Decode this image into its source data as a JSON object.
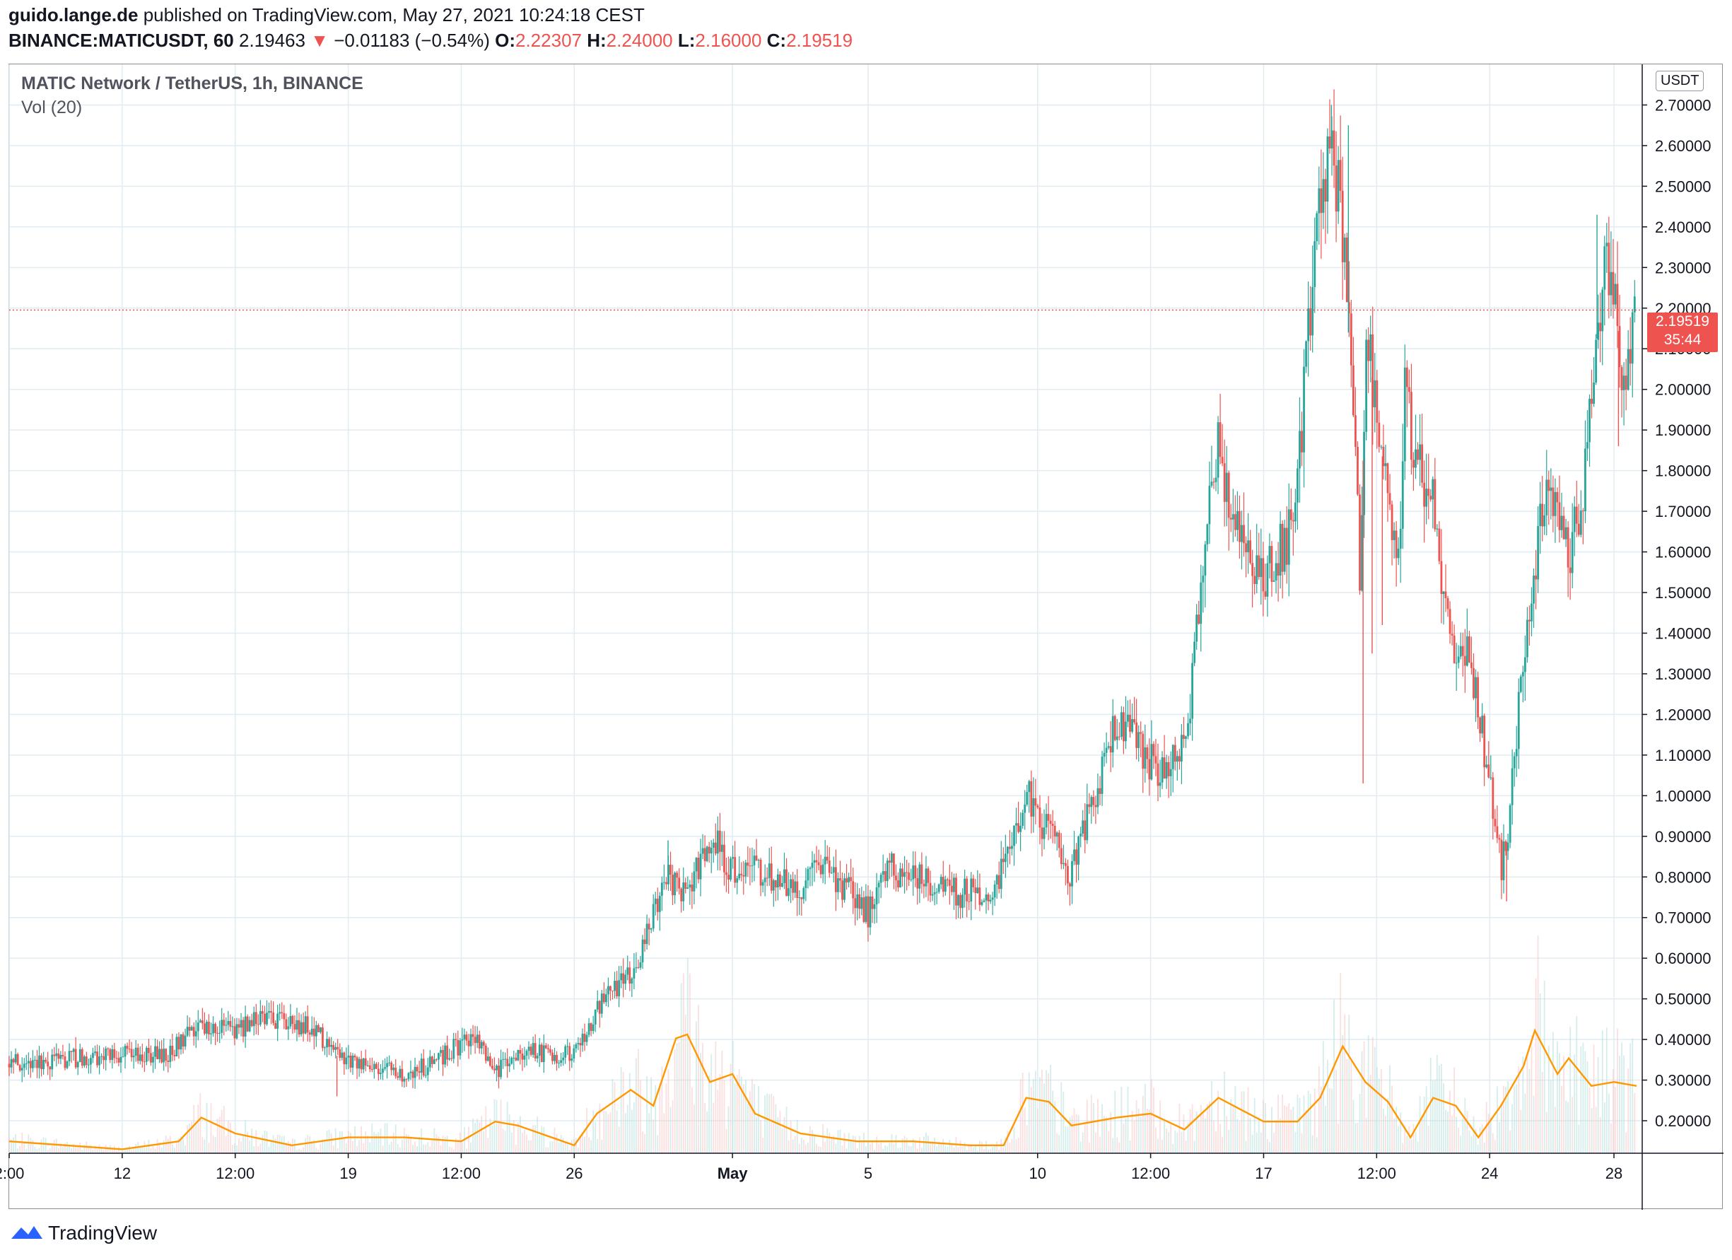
{
  "header": {
    "author": "guido.lange.de",
    "published": "published on TradingView.com, May 27, 2021 10:24:18 CEST",
    "symbol": "BINANCE:MATICUSDT, 60",
    "last": "2.19463",
    "arrow": "▼",
    "change": "−0.01183 (−0.54%)",
    "o_label": "O:",
    "o_value": "2.22307",
    "h_label": "H:",
    "h_value": "2.24000",
    "l_label": "L:",
    "l_value": "2.16000",
    "c_label": "C:",
    "c_value": "2.19519"
  },
  "legend": {
    "title": "MATIC Network / TetherUS, 1h, BINANCE",
    "volume": "Vol (20)"
  },
  "axis": {
    "unit": "USDT",
    "price_tag": "2.19519",
    "countdown": "35:44"
  },
  "footer": {
    "brand": "TradingView"
  },
  "colors": {
    "up": "#26a69a",
    "down": "#ef5350",
    "ma": "#ff9800",
    "grid": "#e0ecf2",
    "last_line": "#ef5350"
  },
  "chart_data": {
    "type": "candlestick",
    "interval": "1h",
    "y_scale": "linear",
    "ylim": [
      0.12,
      2.8
    ],
    "y_ticks": [
      "0.20000",
      "0.30000",
      "0.40000",
      "0.50000",
      "0.60000",
      "0.70000",
      "0.80000",
      "0.90000",
      "1.00000",
      "1.10000",
      "1.20000",
      "1.30000",
      "1.40000",
      "1.50000",
      "1.60000",
      "1.70000",
      "1.80000",
      "1.90000",
      "2.00000",
      "2.10000",
      "2.20000",
      "2.30000",
      "2.40000",
      "2.50000",
      "2.60000",
      "2.70000"
    ],
    "y_tick_values": [
      0.2,
      0.3,
      0.4,
      0.5,
      0.6,
      0.7,
      0.8,
      0.9,
      1.0,
      1.1,
      1.2,
      1.3,
      1.4,
      1.5,
      1.6,
      1.7,
      1.8,
      1.9,
      2.0,
      2.1,
      2.2,
      2.3,
      2.4,
      2.5,
      2.6,
      2.7
    ],
    "x_ticks": [
      {
        "label": "2:00",
        "t": 0
      },
      {
        "label": "12",
        "t": 10
      },
      {
        "label": "12:00",
        "t": 20
      },
      {
        "label": "19",
        "t": 30
      },
      {
        "label": "12:00",
        "t": 40
      },
      {
        "label": "26",
        "t": 50
      },
      {
        "label": "May",
        "t": 64
      },
      {
        "label": "5",
        "t": 76
      },
      {
        "label": "10",
        "t": 91
      },
      {
        "label": "12:00",
        "t": 101
      },
      {
        "label": "17",
        "t": 111
      },
      {
        "label": "12:00",
        "t": 121
      },
      {
        "label": "24",
        "t": 131
      },
      {
        "label": "28",
        "t": 142
      }
    ],
    "x_range": [
      0,
      142
    ],
    "last_price": 2.19519,
    "price_path": [
      [
        0,
        0.34
      ],
      [
        8,
        0.36
      ],
      [
        14,
        0.36
      ],
      [
        16,
        0.43
      ],
      [
        20,
        0.42
      ],
      [
        22,
        0.46
      ],
      [
        27,
        0.43
      ],
      [
        29,
        0.36
      ],
      [
        32,
        0.34
      ],
      [
        35,
        0.31
      ],
      [
        38,
        0.35
      ],
      [
        41,
        0.41
      ],
      [
        43,
        0.32
      ],
      [
        46,
        0.37
      ],
      [
        50,
        0.36
      ],
      [
        52,
        0.47
      ],
      [
        55,
        0.57
      ],
      [
        56,
        0.62
      ],
      [
        58,
        0.8
      ],
      [
        60,
        0.75
      ],
      [
        62,
        0.9
      ],
      [
        64,
        0.82
      ],
      [
        67,
        0.81
      ],
      [
        70,
        0.77
      ],
      [
        72,
        0.84
      ],
      [
        74,
        0.77
      ],
      [
        76,
        0.71
      ],
      [
        78,
        0.82
      ],
      [
        81,
        0.79
      ],
      [
        84,
        0.76
      ],
      [
        87,
        0.76
      ],
      [
        89,
        0.92
      ],
      [
        90,
        1.02
      ],
      [
        92,
        0.9
      ],
      [
        94,
        0.81
      ],
      [
        96,
        1.0
      ],
      [
        98,
        1.18
      ],
      [
        100,
        1.12
      ],
      [
        102,
        1.05
      ],
      [
        104,
        1.12
      ],
      [
        105,
        1.37
      ],
      [
        106,
        1.72
      ],
      [
        107,
        1.85
      ],
      [
        109,
        1.63
      ],
      [
        111,
        1.55
      ],
      [
        113,
        1.62
      ],
      [
        114,
        1.75
      ],
      [
        115,
        2.15
      ],
      [
        116,
        2.5
      ],
      [
        117,
        2.62
      ],
      [
        118,
        2.38
      ],
      [
        119,
        1.9
      ],
      [
        119.6,
        1.5
      ],
      [
        120,
        2.15
      ],
      [
        121,
        1.95
      ],
      [
        122,
        1.72
      ],
      [
        123,
        1.62
      ],
      [
        123.6,
        2.13
      ],
      [
        124,
        1.85
      ],
      [
        126,
        1.72
      ],
      [
        127,
        1.5
      ],
      [
        128,
        1.35
      ],
      [
        129,
        1.38
      ],
      [
        130,
        1.2
      ],
      [
        131,
        1.05
      ],
      [
        132,
        0.82
      ],
      [
        132.6,
        0.9
      ],
      [
        133,
        1.02
      ],
      [
        134,
        1.35
      ],
      [
        135,
        1.55
      ],
      [
        136,
        1.8
      ],
      [
        137,
        1.72
      ],
      [
        138,
        1.6
      ],
      [
        139,
        1.7
      ],
      [
        140,
        1.95
      ],
      [
        141,
        2.3
      ],
      [
        142,
        2.24
      ],
      [
        143,
        2.0
      ],
      [
        143.5,
        2.15
      ],
      [
        144,
        2.2
      ]
    ],
    "spikes": [
      {
        "t": 117,
        "high": 2.7
      },
      {
        "t": 118.5,
        "high": 2.65
      },
      {
        "t": 119.8,
        "low": 1.03
      },
      {
        "t": 120.6,
        "low": 1.35
      },
      {
        "t": 121.5,
        "low": 1.42
      },
      {
        "t": 132.5,
        "low": 0.74
      },
      {
        "t": 140.5,
        "high": 2.43
      },
      {
        "t": 142.4,
        "low": 1.86
      },
      {
        "t": 29,
        "low": 0.26
      },
      {
        "t": 58.3,
        "high": 0.89
      }
    ],
    "volume_ma_path": [
      [
        0,
        0.03
      ],
      [
        10,
        0.01
      ],
      [
        15,
        0.03
      ],
      [
        17,
        0.09
      ],
      [
        20,
        0.05
      ],
      [
        25,
        0.02
      ],
      [
        30,
        0.04
      ],
      [
        35,
        0.04
      ],
      [
        40,
        0.03
      ],
      [
        43,
        0.08
      ],
      [
        45,
        0.07
      ],
      [
        50,
        0.02
      ],
      [
        52,
        0.1
      ],
      [
        55,
        0.16
      ],
      [
        57,
        0.12
      ],
      [
        59,
        0.29
      ],
      [
        60,
        0.3
      ],
      [
        62,
        0.18
      ],
      [
        64,
        0.2
      ],
      [
        66,
        0.1
      ],
      [
        70,
        0.05
      ],
      [
        75,
        0.03
      ],
      [
        80,
        0.03
      ],
      [
        85,
        0.02
      ],
      [
        88,
        0.02
      ],
      [
        90,
        0.14
      ],
      [
        92,
        0.13
      ],
      [
        94,
        0.07
      ],
      [
        98,
        0.09
      ],
      [
        101,
        0.1
      ],
      [
        104,
        0.06
      ],
      [
        107,
        0.14
      ],
      [
        109,
        0.11
      ],
      [
        111,
        0.08
      ],
      [
        114,
        0.08
      ],
      [
        116,
        0.14
      ],
      [
        118,
        0.27
      ],
      [
        120,
        0.18
      ],
      [
        122,
        0.13
      ],
      [
        124,
        0.04
      ],
      [
        126,
        0.14
      ],
      [
        128,
        0.12
      ],
      [
        130,
        0.04
      ],
      [
        132,
        0.12
      ],
      [
        134,
        0.22
      ],
      [
        135,
        0.31
      ],
      [
        137,
        0.2
      ],
      [
        138,
        0.24
      ],
      [
        140,
        0.17
      ],
      [
        142,
        0.18
      ],
      [
        144,
        0.17
      ]
    ]
  }
}
